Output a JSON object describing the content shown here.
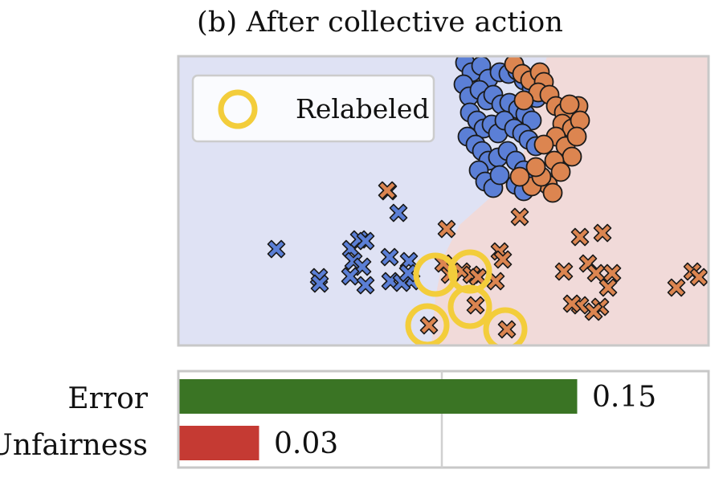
{
  "title": "(b) After collective action",
  "colors": {
    "blue": "#5b7fd6",
    "orange": "#dc8550",
    "relabeled": "#f3cd3b",
    "bg_blue": "#dfe2f4",
    "bg_red": "#f1dad9",
    "frame": "#c8c8c8",
    "error_bar": "#3a7424",
    "unfairness_bar": "#c53a33"
  },
  "legend": {
    "label": "Relabeled"
  },
  "chart_data": [
    {
      "type": "scatter",
      "title": "(b) After collective action",
      "xlim": [
        0,
        660
      ],
      "ylim": [
        0,
        360
      ],
      "legend_position": "top-left",
      "grid": false,
      "series": [
        {
          "name": "",
          "marker": "circle",
          "color": "#5b7fd6",
          "points": [
            [
              357,
              8
            ],
            [
              365,
              20
            ],
            [
              377,
              12
            ],
            [
              386,
              28
            ],
            [
              400,
              20
            ],
            [
              411,
              22
            ],
            [
              422,
              18
            ],
            [
              430,
              30
            ],
            [
              440,
              40
            ],
            [
              446,
              52
            ],
            [
              355,
              35
            ],
            [
              362,
              50
            ],
            [
              375,
              42
            ],
            [
              384,
              55
            ],
            [
              392,
              48
            ],
            [
              402,
              60
            ],
            [
              412,
              58
            ],
            [
              423,
              66
            ],
            [
              432,
              72
            ],
            [
              440,
              80
            ],
            [
              363,
              70
            ],
            [
              372,
              80
            ],
            [
              380,
              90
            ],
            [
              390,
              85
            ],
            [
              398,
              96
            ],
            [
              406,
              80
            ],
            [
              418,
              90
            ],
            [
              428,
              96
            ],
            [
              436,
              104
            ],
            [
              445,
              112
            ],
            [
              360,
              100
            ],
            [
              370,
              110
            ],
            [
              378,
              118
            ],
            [
              386,
              130
            ],
            [
              398,
              126
            ],
            [
              410,
              118
            ],
            [
              420,
              130
            ],
            [
              430,
              142
            ],
            [
              440,
              150
            ],
            [
              374,
              142
            ],
            [
              382,
              156
            ],
            [
              392,
              164
            ],
            [
              400,
              148
            ],
            [
              420,
              160
            ],
            [
              430,
              168
            ]
          ]
        },
        {
          "name": "",
          "marker": "circle",
          "color": "#dc8550",
          "points": [
            [
              418,
              10
            ],
            [
              428,
              22
            ],
            [
              438,
              30
            ],
            [
              450,
              20
            ],
            [
              455,
              32
            ],
            [
              448,
              45
            ],
            [
              462,
              48
            ],
            [
              470,
              62
            ],
            [
              480,
              70
            ],
            [
              478,
              84
            ],
            [
              490,
              90
            ],
            [
              498,
              62
            ],
            [
              470,
              100
            ],
            [
              455,
              110
            ],
            [
              482,
              112
            ],
            [
              490,
              125
            ],
            [
              468,
              130
            ],
            [
              476,
              144
            ],
            [
              460,
              160
            ],
            [
              440,
              162
            ],
            [
              452,
              150
            ],
            [
              466,
              170
            ],
            [
              445,
              138
            ],
            [
              425,
              150
            ],
            [
              500,
              80
            ],
            [
              496,
              100
            ],
            [
              487,
              60
            ],
            [
              430,
              55
            ]
          ]
        },
        {
          "name": "",
          "marker": "x",
          "color": "#5b7fd6",
          "points": [
            [
              122,
              240
            ],
            [
              175,
              275
            ],
            [
              176,
              283
            ],
            [
              215,
              240
            ],
            [
              225,
              228
            ],
            [
              233,
              230
            ],
            [
              218,
              255
            ],
            [
              229,
              262
            ],
            [
              214,
              274
            ],
            [
              233,
              285
            ],
            [
              263,
              250
            ],
            [
              264,
              280
            ],
            [
              274,
              195
            ],
            [
              287,
              255
            ],
            [
              290,
              280
            ],
            [
              278,
              282
            ],
            [
              286,
              270
            ],
            [
              261,
              168
            ]
          ]
        },
        {
          "name": "",
          "marker": "x",
          "color": "#dc8550",
          "points": [
            [
              260,
              167
            ],
            [
              334,
              215
            ],
            [
              338,
              272
            ],
            [
              353,
              268
            ],
            [
              365,
              272
            ],
            [
              373,
              275
            ],
            [
              395,
              280
            ],
            [
              370,
              310
            ],
            [
              312,
              335
            ],
            [
              409,
              340
            ],
            [
              400,
              243
            ],
            [
              404,
              253
            ],
            [
              425,
              200
            ],
            [
              500,
              225
            ],
            [
              528,
              220
            ],
            [
              510,
              258
            ],
            [
              480,
              268
            ],
            [
              520,
              270
            ],
            [
              540,
              270
            ],
            [
              535,
              288
            ],
            [
              525,
              312
            ],
            [
              517,
              318
            ],
            [
              500,
              310
            ],
            [
              490,
              308
            ],
            [
              620,
              288
            ],
            [
              640,
              268
            ],
            [
              648,
              275
            ],
            [
              330,
              258
            ]
          ]
        }
      ],
      "relabeled": [
        [
          320,
          272
        ],
        [
          363,
          268
        ],
        [
          310,
          335
        ],
        [
          363,
          312
        ],
        [
          407,
          340
        ]
      ]
    },
    {
      "type": "bar",
      "orientation": "horizontal",
      "categories": [
        "Error",
        "Unfairness"
      ],
      "values": [
        0.15,
        0.03
      ],
      "value_labels": [
        "0.15",
        "0.03"
      ],
      "xlim": [
        0,
        0.2
      ],
      "grid": true,
      "colors": [
        "#3a7424",
        "#c53a33"
      ]
    }
  ]
}
